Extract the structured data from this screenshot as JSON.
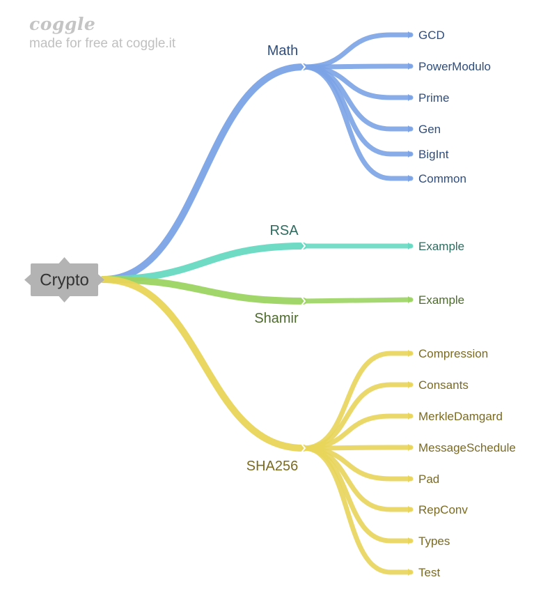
{
  "brand": {
    "logo": "coggle",
    "tagline": "made for free at coggle.it"
  },
  "colors": {
    "root_fill": "#b3b3b3",
    "root_text": "#333333",
    "math": "#7ba3e6",
    "math_text": "#2f4d7c",
    "rsa": "#67d9c2",
    "rsa_text": "#2e6b5e",
    "shamir": "#9cd463",
    "shamir_text": "#4c6b2c",
    "sha": "#e8d55a",
    "sha_text": "#7a6a22"
  },
  "root": {
    "label": "Crypto",
    "icon": "root-node-shape"
  },
  "branches": [
    {
      "key": "math",
      "label": "Math",
      "children": [
        "GCD",
        "PowerModulo",
        "Prime",
        "Gen",
        "BigInt",
        "Common"
      ]
    },
    {
      "key": "rsa",
      "label": "RSA",
      "children": [
        "Example"
      ]
    },
    {
      "key": "shamir",
      "label": "Shamir",
      "children": [
        "Example"
      ]
    },
    {
      "key": "sha",
      "label": "SHA256",
      "children": [
        "Compression",
        "Consants",
        "MerkleDamgard",
        "MessageSchedule",
        "Pad",
        "RepConv",
        "Types",
        "Test"
      ]
    }
  ]
}
